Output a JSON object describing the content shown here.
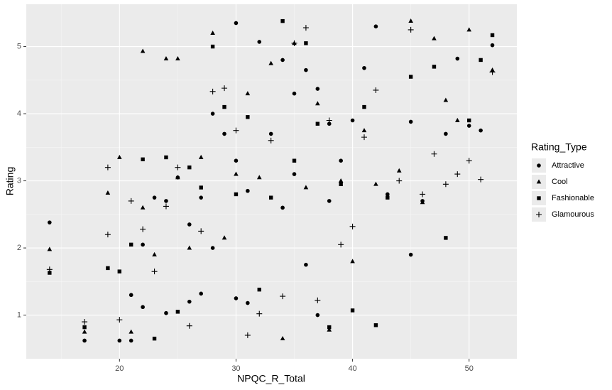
{
  "chart_data": {
    "type": "scatter",
    "x_label": "NPQC_R_Total",
    "y_label": "Rating",
    "legend_title": "Rating_Type",
    "legend_position": "right",
    "grid": true,
    "xlim": [
      12,
      54.1
    ],
    "ylim": [
      0.35,
      5.63
    ],
    "xticks": [
      20,
      30,
      40,
      50
    ],
    "yticks": [
      1,
      2,
      3,
      4,
      5
    ],
    "xminor": [
      15,
      25,
      35,
      45
    ],
    "yminor": [
      1.5,
      2.5,
      3.5,
      4.5
    ],
    "series": [
      {
        "name": "Attractive",
        "shape": "circle",
        "color": "#000000",
        "x": [
          14,
          17,
          20,
          21,
          21,
          22,
          22,
          23,
          24,
          24,
          25,
          26,
          26,
          27,
          27,
          28,
          28,
          29,
          30,
          30,
          30,
          31,
          31,
          32,
          33,
          34,
          34,
          35,
          35,
          36,
          36,
          37,
          37,
          38,
          38,
          39,
          40,
          41,
          42,
          43,
          45,
          45,
          46,
          48,
          49,
          50,
          51,
          52
        ],
        "values": [
          2.38,
          0.62,
          0.62,
          1.3,
          0.62,
          1.12,
          2.05,
          2.75,
          1.03,
          2.7,
          3.05,
          2.35,
          1.2,
          1.32,
          2.75,
          4.0,
          2.0,
          3.7,
          5.35,
          1.25,
          3.3,
          1.18,
          2.85,
          5.07,
          3.7,
          4.8,
          2.6,
          4.3,
          3.1,
          4.65,
          1.75,
          4.37,
          1.0,
          3.85,
          2.7,
          3.3,
          3.9,
          4.68,
          5.3,
          2.8,
          3.88,
          1.9,
          2.7,
          3.7,
          4.82,
          3.82,
          3.75,
          5.02
        ]
      },
      {
        "name": "Cool",
        "shape": "triangle",
        "color": "#000000",
        "x": [
          14,
          17,
          19,
          20,
          21,
          22,
          22,
          23,
          24,
          25,
          25,
          26,
          27,
          28,
          29,
          30,
          31,
          32,
          33,
          34,
          35,
          36,
          37,
          38,
          39,
          40,
          41,
          42,
          44,
          45,
          46,
          47,
          48,
          49,
          50,
          52
        ],
        "values": [
          1.98,
          0.75,
          2.82,
          3.35,
          0.75,
          4.93,
          2.6,
          1.9,
          4.82,
          4.82,
          3.05,
          2.0,
          3.35,
          5.2,
          2.15,
          3.1,
          4.3,
          3.05,
          4.75,
          0.65,
          5.05,
          2.9,
          4.15,
          0.78,
          3.0,
          1.8,
          3.75,
          2.95,
          3.15,
          5.38,
          2.68,
          5.12,
          4.2,
          3.9,
          5.25,
          4.65
        ]
      },
      {
        "name": "Fashionable",
        "shape": "square",
        "color": "#000000",
        "x": [
          14,
          17,
          19,
          20,
          21,
          22,
          23,
          24,
          25,
          26,
          27,
          28,
          29,
          30,
          31,
          32,
          33,
          34,
          35,
          36,
          37,
          38,
          39,
          40,
          41,
          42,
          43,
          45,
          47,
          48,
          50,
          51,
          52
        ],
        "values": [
          1.63,
          0.82,
          1.7,
          1.65,
          2.05,
          3.32,
          0.65,
          3.35,
          1.05,
          3.2,
          2.9,
          5.0,
          4.1,
          2.8,
          3.95,
          1.38,
          2.75,
          5.38,
          3.3,
          5.05,
          3.85,
          0.82,
          2.95,
          1.07,
          4.1,
          0.85,
          2.75,
          4.55,
          4.7,
          2.15,
          3.9,
          4.8,
          5.17
        ]
      },
      {
        "name": "Glamourous",
        "shape": "plus",
        "color": "#000000",
        "x": [
          14,
          17,
          19,
          19,
          20,
          21,
          22,
          23,
          24,
          25,
          26,
          27,
          28,
          29,
          30,
          31,
          32,
          33,
          34,
          35,
          36,
          37,
          38,
          39,
          40,
          41,
          42,
          44,
          45,
          46,
          47,
          48,
          49,
          50,
          51,
          52
        ],
        "values": [
          1.68,
          0.9,
          2.2,
          3.2,
          0.93,
          2.7,
          2.28,
          1.65,
          2.62,
          3.2,
          0.84,
          2.25,
          4.33,
          4.38,
          3.75,
          0.7,
          1.02,
          3.6,
          1.28,
          5.05,
          5.28,
          1.22,
          3.9,
          2.05,
          2.32,
          3.65,
          4.35,
          3.0,
          5.25,
          2.8,
          3.4,
          2.95,
          3.1,
          3.3,
          3.02,
          4.62
        ]
      }
    ]
  }
}
